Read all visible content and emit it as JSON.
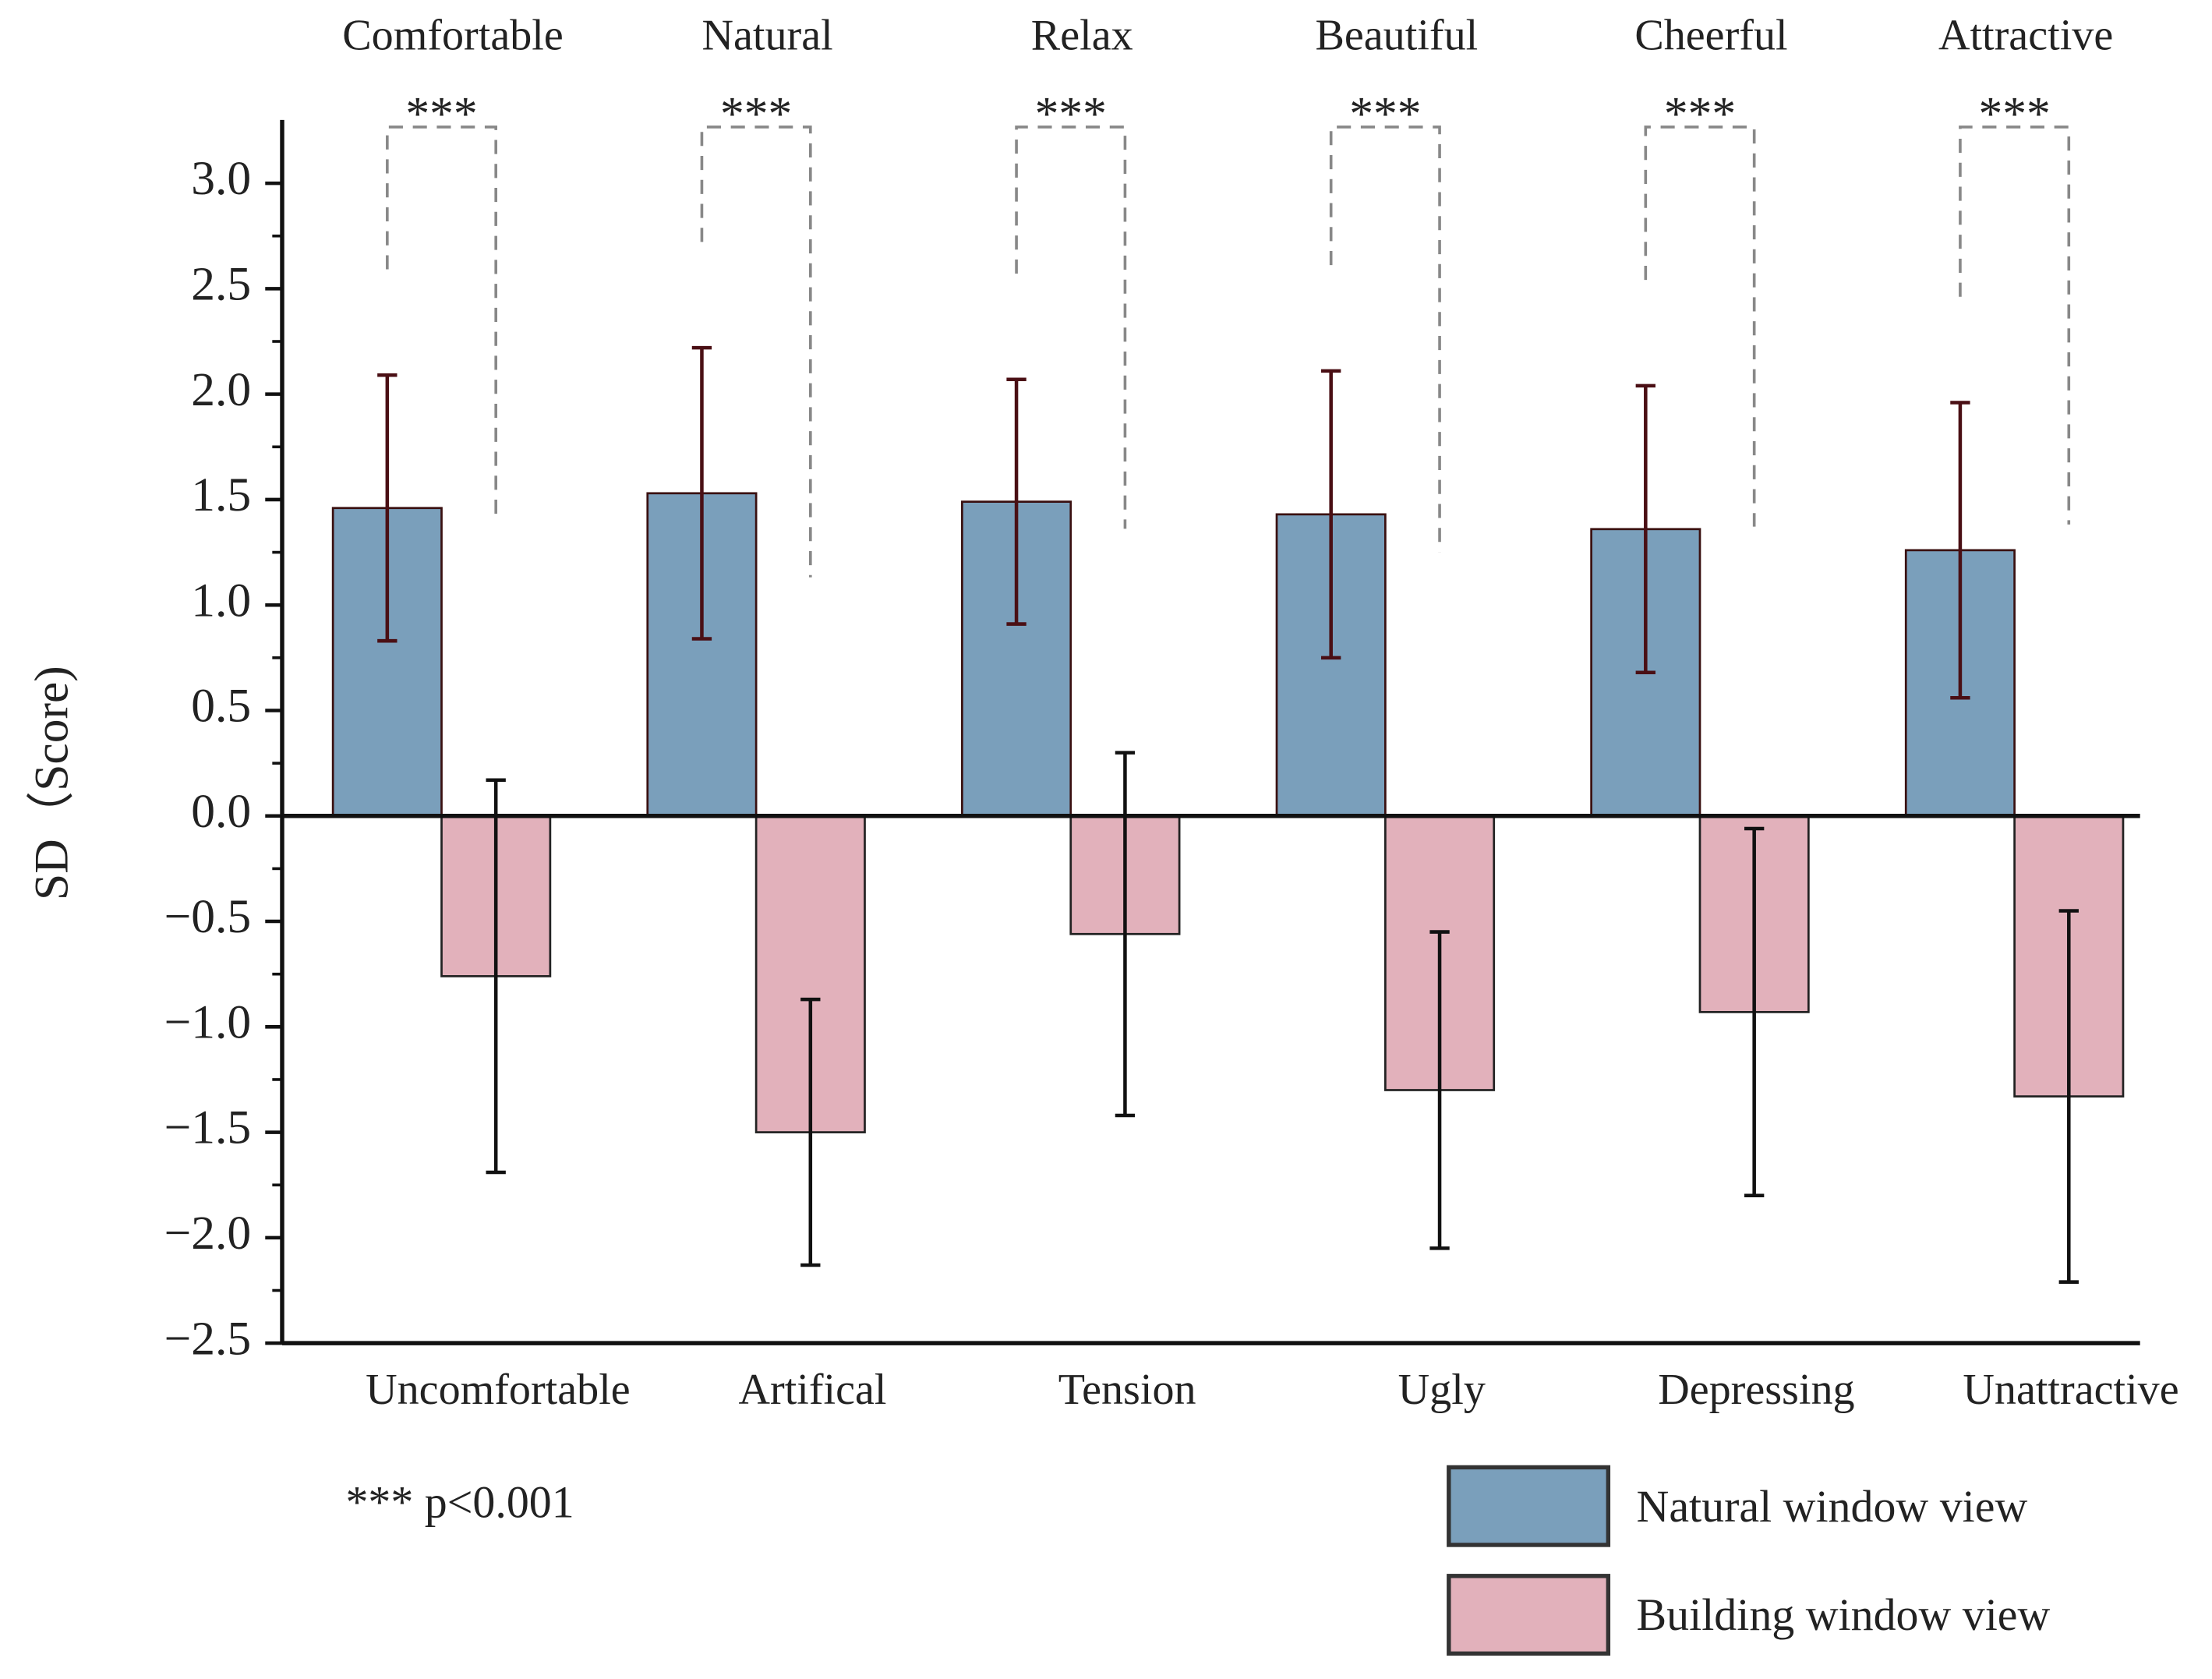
{
  "chart_data": {
    "type": "bar",
    "categories": [
      "Comfortable",
      "Natural",
      "Relax",
      "Beautiful",
      "Cheerful",
      "Attractive"
    ],
    "bottom_categories": [
      "Uncomfortable",
      "Artifical",
      "Tension",
      "Ugly",
      "Depressing",
      "Unattractive"
    ],
    "ylabel": "SD（Score)",
    "ylim": [
      -2.5,
      3.3
    ],
    "yticks": [
      {
        "value": -2.5,
        "label": "−2.5"
      },
      {
        "value": -2,
        "label": "−2.0"
      },
      {
        "value": -1.5,
        "label": "−1.5"
      },
      {
        "value": -1,
        "label": "−1.0"
      },
      {
        "value": -0.5,
        "label": "−0.5"
      },
      {
        "value": 0,
        "label": "0.0"
      },
      {
        "value": 0.5,
        "label": "0.5"
      },
      {
        "value": 1,
        "label": "1.0"
      },
      {
        "value": 1.5,
        "label": "1.5"
      },
      {
        "value": 2,
        "label": "2.0"
      },
      {
        "value": 2.5,
        "label": "2.5"
      },
      {
        "value": 3,
        "label": "3.0"
      }
    ],
    "series": [
      {
        "name": "Natural window view",
        "color": "#7a9fbb",
        "error_color": "#4a0f14",
        "values": [
          1.46,
          1.53,
          1.49,
          1.43,
          1.36,
          1.26
        ],
        "errors": [
          0.63,
          0.69,
          0.58,
          0.68,
          0.68,
          0.7
        ]
      },
      {
        "name": "Building window view",
        "color": "#e2b1bb",
        "error_color": "#111111",
        "values": [
          -0.76,
          -1.5,
          -0.56,
          -1.3,
          -0.93,
          -1.33
        ],
        "errors": [
          0.93,
          0.63,
          0.86,
          0.75,
          0.87,
          0.88
        ]
      }
    ],
    "significance": [
      "***",
      "***",
      "***",
      "***",
      "***",
      "***"
    ],
    "note": "*** p<0.001"
  }
}
